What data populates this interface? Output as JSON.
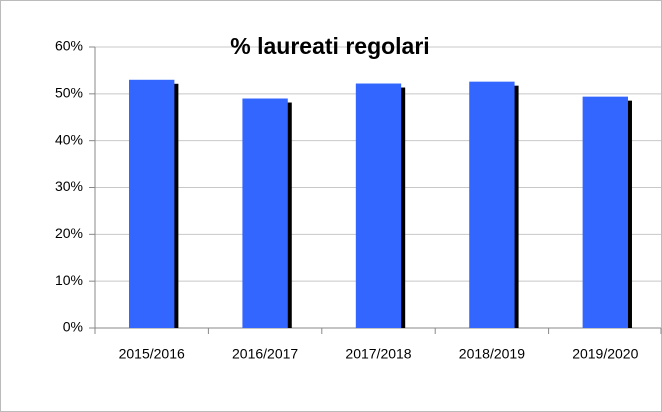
{
  "chart_data": {
    "type": "bar",
    "title": "% laureati regolari",
    "categories": [
      "2015/2016",
      "2016/2017",
      "2017/2018",
      "2018/2019",
      "2019/2020"
    ],
    "values": [
      53,
      49,
      52.2,
      52.6,
      49.4
    ],
    "color": "#3366ff",
    "ylim": [
      0,
      60
    ],
    "yticks": [
      {
        "value": 0,
        "label": "0%"
      },
      {
        "value": 10,
        "label": "10%"
      },
      {
        "value": 20,
        "label": "20%"
      },
      {
        "value": 30,
        "label": "30%"
      },
      {
        "value": 40,
        "label": "40%"
      },
      {
        "value": 50,
        "label": "50%"
      },
      {
        "value": 60,
        "label": "60%"
      }
    ],
    "grid": true
  }
}
